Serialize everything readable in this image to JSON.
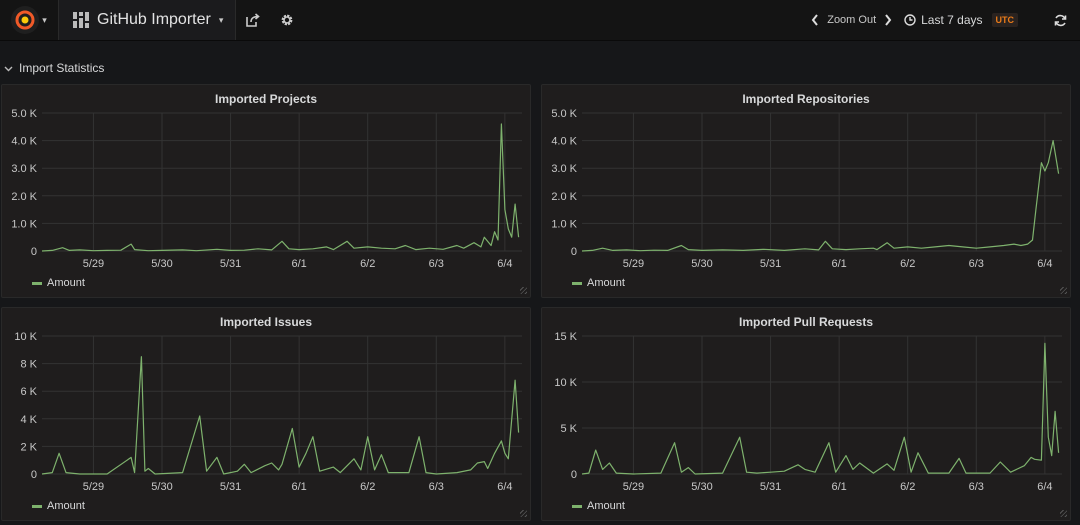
{
  "navbar": {
    "dashboard_title": "GitHub Importer",
    "zoom_out_label": "Zoom Out",
    "time_range_label": "Last 7 days",
    "timezone_badge": "UTC",
    "icons": [
      "grafana-logo-icon",
      "share-icon",
      "settings-gear-icon",
      "chevron-left-icon",
      "chevron-right-icon",
      "clock-icon",
      "refresh-icon"
    ]
  },
  "row": {
    "title": "Import Statistics"
  },
  "colors": {
    "series": "#7eb26d",
    "panel_bg": "#1f1d1d",
    "page_bg": "#161719",
    "utc_badge": "#eb7b18"
  },
  "panels": [
    {
      "title": "Imported Projects",
      "legend": "Amount"
    },
    {
      "title": "Imported Repositories",
      "legend": "Amount"
    },
    {
      "title": "Imported Issues",
      "legend": "Amount"
    },
    {
      "title": "Imported Pull Requests",
      "legend": "Amount"
    }
  ],
  "chart_data": [
    {
      "type": "line",
      "title": "Imported Projects",
      "legend": [
        "Amount"
      ],
      "ylim": [
        0,
        5000
      ],
      "y_ticks": [
        "0",
        "1.0 K",
        "2.0 K",
        "3.0 K",
        "4.0 K",
        "5.0 K"
      ],
      "y_tick_values": [
        0,
        1000,
        2000,
        3000,
        4000,
        5000
      ],
      "x_ticks": [
        "5/29",
        "5/30",
        "5/31",
        "6/1",
        "6/2",
        "6/3",
        "6/4"
      ],
      "x_range": [
        -0.75,
        6.25
      ],
      "grid": true,
      "series": [
        {
          "name": "Amount",
          "points": [
            [
              -0.75,
              0
            ],
            [
              -0.6,
              20
            ],
            [
              -0.45,
              120
            ],
            [
              -0.35,
              20
            ],
            [
              -0.2,
              40
            ],
            [
              0,
              10
            ],
            [
              0.2,
              20
            ],
            [
              0.4,
              30
            ],
            [
              0.55,
              250
            ],
            [
              0.6,
              50
            ],
            [
              0.8,
              10
            ],
            [
              1.0,
              20
            ],
            [
              1.3,
              40
            ],
            [
              1.5,
              10
            ],
            [
              1.8,
              60
            ],
            [
              2.0,
              20
            ],
            [
              2.2,
              30
            ],
            [
              2.4,
              80
            ],
            [
              2.6,
              40
            ],
            [
              2.75,
              350
            ],
            [
              2.85,
              80
            ],
            [
              3.0,
              50
            ],
            [
              3.2,
              80
            ],
            [
              3.4,
              150
            ],
            [
              3.5,
              50
            ],
            [
              3.7,
              350
            ],
            [
              3.8,
              100
            ],
            [
              4.0,
              150
            ],
            [
              4.2,
              100
            ],
            [
              4.4,
              80
            ],
            [
              4.55,
              200
            ],
            [
              4.7,
              50
            ],
            [
              4.9,
              100
            ],
            [
              5.1,
              60
            ],
            [
              5.3,
              200
            ],
            [
              5.4,
              100
            ],
            [
              5.55,
              300
            ],
            [
              5.65,
              150
            ],
            [
              5.7,
              500
            ],
            [
              5.8,
              200
            ],
            [
              5.85,
              700
            ],
            [
              5.9,
              400
            ],
            [
              5.95,
              4600
            ],
            [
              6.0,
              1500
            ],
            [
              6.05,
              800
            ],
            [
              6.1,
              500
            ],
            [
              6.15,
              1700
            ],
            [
              6.2,
              500
            ]
          ]
        }
      ]
    },
    {
      "type": "line",
      "title": "Imported Repositories",
      "legend": [
        "Amount"
      ],
      "ylim": [
        0,
        5000
      ],
      "y_ticks": [
        "0",
        "1.0 K",
        "2.0 K",
        "3.0 K",
        "4.0 K",
        "5.0 K"
      ],
      "y_tick_values": [
        0,
        1000,
        2000,
        3000,
        4000,
        5000
      ],
      "x_ticks": [
        "5/29",
        "5/30",
        "5/31",
        "6/1",
        "6/2",
        "6/3",
        "6/4"
      ],
      "x_range": [
        -0.75,
        6.25
      ],
      "grid": true,
      "series": [
        {
          "name": "Amount",
          "points": [
            [
              -0.75,
              0
            ],
            [
              -0.6,
              20
            ],
            [
              -0.45,
              100
            ],
            [
              -0.3,
              20
            ],
            [
              -0.1,
              40
            ],
            [
              0.1,
              10
            ],
            [
              0.3,
              30
            ],
            [
              0.5,
              20
            ],
            [
              0.7,
              200
            ],
            [
              0.8,
              50
            ],
            [
              1.0,
              20
            ],
            [
              1.3,
              40
            ],
            [
              1.6,
              20
            ],
            [
              1.9,
              60
            ],
            [
              2.2,
              20
            ],
            [
              2.5,
              80
            ],
            [
              2.7,
              40
            ],
            [
              2.8,
              350
            ],
            [
              2.9,
              80
            ],
            [
              3.1,
              50
            ],
            [
              3.3,
              80
            ],
            [
              3.5,
              100
            ],
            [
              3.55,
              50
            ],
            [
              3.7,
              300
            ],
            [
              3.8,
              100
            ],
            [
              4.0,
              150
            ],
            [
              4.2,
              100
            ],
            [
              4.4,
              150
            ],
            [
              4.6,
              200
            ],
            [
              4.8,
              150
            ],
            [
              5.0,
              100
            ],
            [
              5.2,
              150
            ],
            [
              5.4,
              200
            ],
            [
              5.55,
              250
            ],
            [
              5.65,
              200
            ],
            [
              5.75,
              250
            ],
            [
              5.82,
              400
            ],
            [
              5.87,
              1500
            ],
            [
              5.95,
              3200
            ],
            [
              6.0,
              2900
            ],
            [
              6.05,
              3200
            ],
            [
              6.12,
              4000
            ],
            [
              6.2,
              2800
            ]
          ]
        }
      ]
    },
    {
      "type": "line",
      "title": "Imported Issues",
      "legend": [
        "Amount"
      ],
      "ylim": [
        0,
        10000
      ],
      "y_ticks": [
        "0",
        "2 K",
        "4 K",
        "6 K",
        "8 K",
        "10 K"
      ],
      "y_tick_values": [
        0,
        2000,
        4000,
        6000,
        8000,
        10000
      ],
      "x_ticks": [
        "5/29",
        "5/30",
        "5/31",
        "6/1",
        "6/2",
        "6/3",
        "6/4"
      ],
      "x_range": [
        -0.75,
        6.25
      ],
      "grid": true,
      "series": [
        {
          "name": "Amount",
          "points": [
            [
              -0.75,
              0
            ],
            [
              -0.6,
              100
            ],
            [
              -0.5,
              1500
            ],
            [
              -0.4,
              100
            ],
            [
              -0.2,
              0
            ],
            [
              0.2,
              0
            ],
            [
              0.55,
              1200
            ],
            [
              0.6,
              100
            ],
            [
              0.7,
              8500
            ],
            [
              0.75,
              200
            ],
            [
              0.8,
              400
            ],
            [
              0.9,
              0
            ],
            [
              1.3,
              100
            ],
            [
              1.55,
              4200
            ],
            [
              1.65,
              200
            ],
            [
              1.8,
              1200
            ],
            [
              1.9,
              0
            ],
            [
              2.1,
              200
            ],
            [
              2.2,
              700
            ],
            [
              2.3,
              100
            ],
            [
              2.5,
              600
            ],
            [
              2.6,
              800
            ],
            [
              2.7,
              300
            ],
            [
              2.75,
              700
            ],
            [
              2.9,
              3300
            ],
            [
              3.0,
              500
            ],
            [
              3.1,
              1500
            ],
            [
              3.2,
              2700
            ],
            [
              3.3,
              200
            ],
            [
              3.5,
              500
            ],
            [
              3.6,
              100
            ],
            [
              3.8,
              1100
            ],
            [
              3.9,
              300
            ],
            [
              4.0,
              2700
            ],
            [
              4.1,
              300
            ],
            [
              4.2,
              1400
            ],
            [
              4.3,
              100
            ],
            [
              4.6,
              100
            ],
            [
              4.75,
              2700
            ],
            [
              4.85,
              100
            ],
            [
              5.0,
              0
            ],
            [
              5.3,
              100
            ],
            [
              5.5,
              300
            ],
            [
              5.6,
              800
            ],
            [
              5.7,
              900
            ],
            [
              5.75,
              400
            ],
            [
              5.85,
              1500
            ],
            [
              5.95,
              2400
            ],
            [
              6.0,
              1500
            ],
            [
              6.05,
              1100
            ],
            [
              6.15,
              6800
            ],
            [
              6.2,
              3000
            ]
          ]
        }
      ]
    },
    {
      "type": "line",
      "title": "Imported Pull Requests",
      "legend": [
        "Amount"
      ],
      "ylim": [
        0,
        15000
      ],
      "y_ticks": [
        "0",
        "5 K",
        "10 K",
        "15 K"
      ],
      "y_tick_values": [
        0,
        5000,
        10000,
        15000
      ],
      "x_ticks": [
        "5/29",
        "5/30",
        "5/31",
        "6/1",
        "6/2",
        "6/3",
        "6/4"
      ],
      "x_range": [
        -0.75,
        6.25
      ],
      "grid": true,
      "series": [
        {
          "name": "Amount",
          "points": [
            [
              -0.75,
              0
            ],
            [
              -0.65,
              100
            ],
            [
              -0.55,
              2600
            ],
            [
              -0.45,
              500
            ],
            [
              -0.35,
              1200
            ],
            [
              -0.25,
              100
            ],
            [
              0,
              0
            ],
            [
              0.4,
              100
            ],
            [
              0.6,
              3400
            ],
            [
              0.7,
              200
            ],
            [
              0.8,
              700
            ],
            [
              0.9,
              0
            ],
            [
              1.3,
              100
            ],
            [
              1.55,
              4000
            ],
            [
              1.65,
              200
            ],
            [
              1.8,
              100
            ],
            [
              2.0,
              200
            ],
            [
              2.2,
              300
            ],
            [
              2.4,
              1000
            ],
            [
              2.5,
              500
            ],
            [
              2.65,
              200
            ],
            [
              2.85,
              3400
            ],
            [
              2.95,
              200
            ],
            [
              3.1,
              2000
            ],
            [
              3.2,
              500
            ],
            [
              3.3,
              1200
            ],
            [
              3.5,
              100
            ],
            [
              3.7,
              1100
            ],
            [
              3.8,
              400
            ],
            [
              3.95,
              4000
            ],
            [
              4.05,
              200
            ],
            [
              4.15,
              2300
            ],
            [
              4.3,
              100
            ],
            [
              4.6,
              100
            ],
            [
              4.75,
              1700
            ],
            [
              4.85,
              100
            ],
            [
              5.2,
              100
            ],
            [
              5.35,
              1300
            ],
            [
              5.5,
              200
            ],
            [
              5.7,
              900
            ],
            [
              5.8,
              1800
            ],
            [
              5.85,
              1600
            ],
            [
              5.95,
              1500
            ],
            [
              6.0,
              14200
            ],
            [
              6.05,
              4000
            ],
            [
              6.1,
              2000
            ],
            [
              6.15,
              6800
            ],
            [
              6.2,
              2300
            ]
          ]
        }
      ]
    }
  ]
}
